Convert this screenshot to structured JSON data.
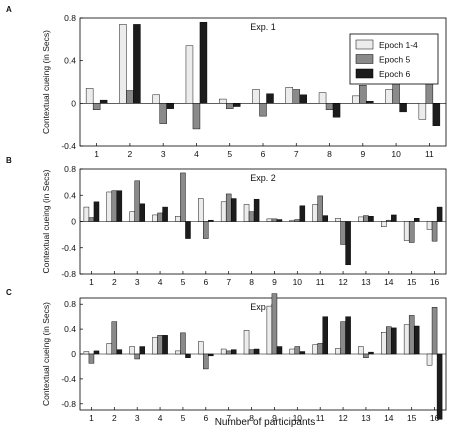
{
  "figure": {
    "xlabel": "Number of participants",
    "legend": [
      {
        "name": "Epoch 1-4",
        "color": "#ececec"
      },
      {
        "name": "Epoch 5",
        "color": "#8a8a8a"
      },
      {
        "name": "Epoch 6",
        "color": "#1c1c1c"
      }
    ]
  },
  "chart_data": [
    {
      "type": "bar",
      "panel_letter": "A",
      "title": "Exp. 1",
      "ylabel": "Contextual cueing (in Secs)",
      "ylim": [
        -0.4,
        0.8
      ],
      "yticks": [
        -0.4,
        0,
        0.4,
        0.8
      ],
      "legend_position": "top-right",
      "categories": [
        "1",
        "2",
        "3",
        "4",
        "5",
        "6",
        "7",
        "8",
        "9",
        "10",
        "11"
      ],
      "series": [
        {
          "name": "Epoch 1-4",
          "values": [
            0.14,
            0.74,
            0.08,
            0.54,
            0.04,
            0.13,
            0.15,
            0.1,
            0.07,
            0.13,
            -0.15
          ]
        },
        {
          "name": "Epoch 5",
          "values": [
            -0.06,
            0.12,
            -0.19,
            -0.24,
            -0.05,
            -0.12,
            0.13,
            -0.06,
            0.17,
            0.25,
            0.31
          ]
        },
        {
          "name": "Epoch 6",
          "values": [
            0.03,
            0.74,
            -0.05,
            0.76,
            -0.03,
            0.09,
            0.08,
            -0.13,
            0.02,
            -0.08,
            -0.21
          ]
        }
      ]
    },
    {
      "type": "bar",
      "panel_letter": "B",
      "title": "Exp. 2",
      "ylabel": "Contextual cueing (in Secs)",
      "ylim": [
        -0.8,
        0.8
      ],
      "yticks": [
        -0.8,
        -0.4,
        0,
        0.4,
        0.8
      ],
      "categories": [
        "1",
        "2",
        "3",
        "4",
        "5",
        "6",
        "7",
        "8",
        "9",
        "10",
        "11",
        "12",
        "13",
        "14",
        "15",
        "16"
      ],
      "series": [
        {
          "name": "Epoch 1-4",
          "values": [
            0.22,
            0.45,
            0.15,
            0.1,
            0.08,
            0.35,
            0.3,
            0.26,
            0.04,
            0.02,
            0.26,
            0.05,
            0.07,
            -0.08,
            -0.29,
            -0.12
          ]
        },
        {
          "name": "Epoch 5",
          "values": [
            0.06,
            0.47,
            0.62,
            0.13,
            0.74,
            -0.26,
            0.42,
            0.15,
            0.04,
            0.03,
            0.39,
            -0.35,
            0.09,
            0.02,
            -0.32,
            -0.3
          ]
        },
        {
          "name": "Epoch 6",
          "values": [
            0.3,
            0.47,
            0.27,
            0.22,
            -0.26,
            0.02,
            0.35,
            0.34,
            0.03,
            0.24,
            0.09,
            -0.66,
            0.08,
            0.1,
            0.05,
            0.22
          ]
        }
      ]
    },
    {
      "type": "bar",
      "panel_letter": "C",
      "title": "Exp. 3",
      "ylabel": "Contextual cueing (in Secs)",
      "ylim": [
        -0.9,
        0.9
      ],
      "yticks": [
        -0.8,
        -0.4,
        0,
        0.4,
        0.8
      ],
      "categories": [
        "1",
        "2",
        "3",
        "4",
        "5",
        "6",
        "7",
        "8",
        "9",
        "10",
        "11",
        "12",
        "13",
        "14",
        "15",
        "16"
      ],
      "series": [
        {
          "name": "Epoch 1-4",
          "values": [
            0.04,
            0.17,
            0.12,
            0.27,
            0.05,
            0.2,
            0.08,
            0.38,
            0.77,
            0.08,
            0.15,
            0.09,
            0.12,
            0.35,
            0.47,
            -0.18
          ]
        },
        {
          "name": "Epoch 5",
          "values": [
            -0.15,
            0.52,
            -0.08,
            0.3,
            0.34,
            -0.24,
            0.05,
            0.07,
            0.97,
            0.12,
            0.17,
            0.52,
            -0.06,
            0.44,
            0.62,
            0.75
          ]
        },
        {
          "name": "Epoch 6",
          "values": [
            0.05,
            0.07,
            0.12,
            0.3,
            -0.06,
            -0.03,
            0.07,
            0.08,
            0.12,
            0.04,
            0.6,
            0.6,
            0.03,
            0.42,
            0.45,
            -1.05
          ]
        }
      ]
    }
  ]
}
